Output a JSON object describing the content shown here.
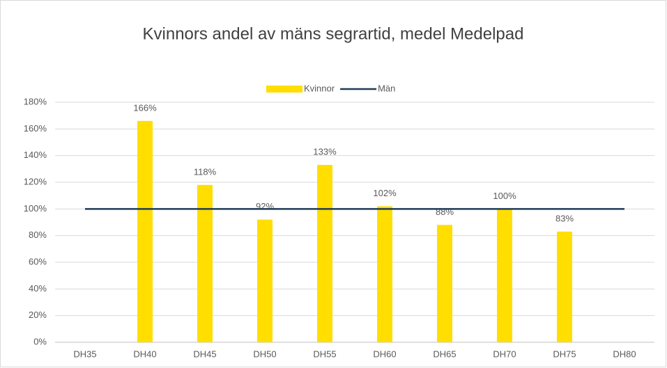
{
  "chart_data": {
    "type": "bar_line",
    "title": "Kvinnors andel av mäns segrartid, medel Medelpad",
    "categories": [
      "DH35",
      "DH40",
      "DH45",
      "DH50",
      "DH55",
      "DH60",
      "DH65",
      "DH70",
      "DH75",
      "DH80"
    ],
    "series": [
      {
        "name": "Kvinnor",
        "type": "bar",
        "color": "#ffde00",
        "values": [
          null,
          166,
          118,
          92,
          133,
          102,
          88,
          100,
          83,
          null
        ],
        "value_labels": [
          null,
          "166%",
          "118%",
          "92%",
          "133%",
          "102%",
          "88%",
          "100%",
          "83%",
          null
        ]
      },
      {
        "name": "Män",
        "type": "line",
        "color": "#1f3b57",
        "values": [
          100,
          100,
          100,
          100,
          100,
          100,
          100,
          100,
          100,
          100
        ]
      }
    ],
    "ylim": [
      0,
      180
    ],
    "yticks": [
      {
        "value": 0,
        "label": "0%"
      },
      {
        "value": 20,
        "label": "20%"
      },
      {
        "value": 40,
        "label": "40%"
      },
      {
        "value": 60,
        "label": "60%"
      },
      {
        "value": 80,
        "label": "80%"
      },
      {
        "value": 100,
        "label": "100%"
      },
      {
        "value": 120,
        "label": "120%"
      },
      {
        "value": 140,
        "label": "140%"
      },
      {
        "value": 160,
        "label": "160%"
      },
      {
        "value": 180,
        "label": "180%"
      }
    ],
    "grid": true,
    "legend": "top"
  }
}
